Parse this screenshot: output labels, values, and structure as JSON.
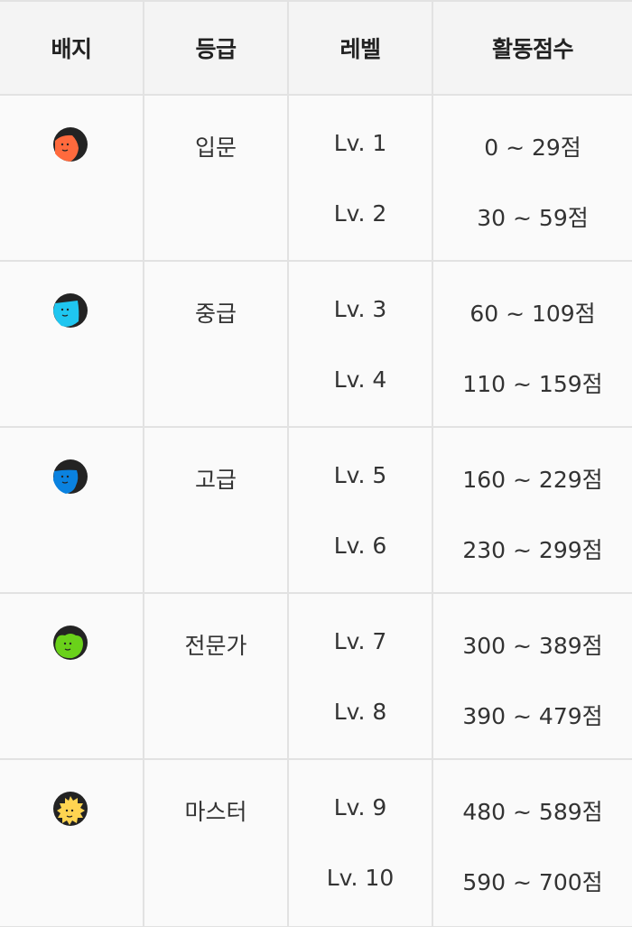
{
  "header": {
    "badge": "배지",
    "grade": "등급",
    "level": "레벨",
    "score": "활동점수"
  },
  "colors": {
    "border": "#e2e2e2",
    "header_bg": "#f4f4f4",
    "row_bg": "#fafafa",
    "text": "#333333",
    "hair": "#232323"
  },
  "rows": [
    {
      "badge_icon": "orange-face-badge-icon",
      "badge_color": "#ff6a3d",
      "grade": "입문",
      "levels": [
        {
          "level": "Lv. 1",
          "score": "0 ~ 29점"
        },
        {
          "level": "Lv. 2",
          "score": "30 ~ 59점"
        }
      ]
    },
    {
      "badge_icon": "cyan-face-badge-icon",
      "badge_color": "#1fc6f0",
      "grade": "중급",
      "levels": [
        {
          "level": "Lv. 3",
          "score": "60 ~ 109점"
        },
        {
          "level": "Lv. 4",
          "score": "110 ~ 159점"
        }
      ]
    },
    {
      "badge_icon": "blue-face-badge-icon",
      "badge_color": "#0a82e0",
      "grade": "고급",
      "levels": [
        {
          "level": "Lv. 5",
          "score": "160 ~ 229점"
        },
        {
          "level": "Lv. 6",
          "score": "230 ~ 299점"
        }
      ]
    },
    {
      "badge_icon": "green-face-badge-icon",
      "badge_color": "#6ad11a",
      "grade": "전문가",
      "levels": [
        {
          "level": "Lv. 7",
          "score": "300 ~ 389점"
        },
        {
          "level": "Lv. 8",
          "score": "390 ~ 479점"
        }
      ]
    },
    {
      "badge_icon": "gold-face-badge-icon",
      "badge_color": "#ffd451",
      "grade": "마스터",
      "levels": [
        {
          "level": "Lv. 9",
          "score": "480 ~ 589점"
        },
        {
          "level": "Lv. 10",
          "score": "590 ~ 700점"
        }
      ]
    }
  ]
}
